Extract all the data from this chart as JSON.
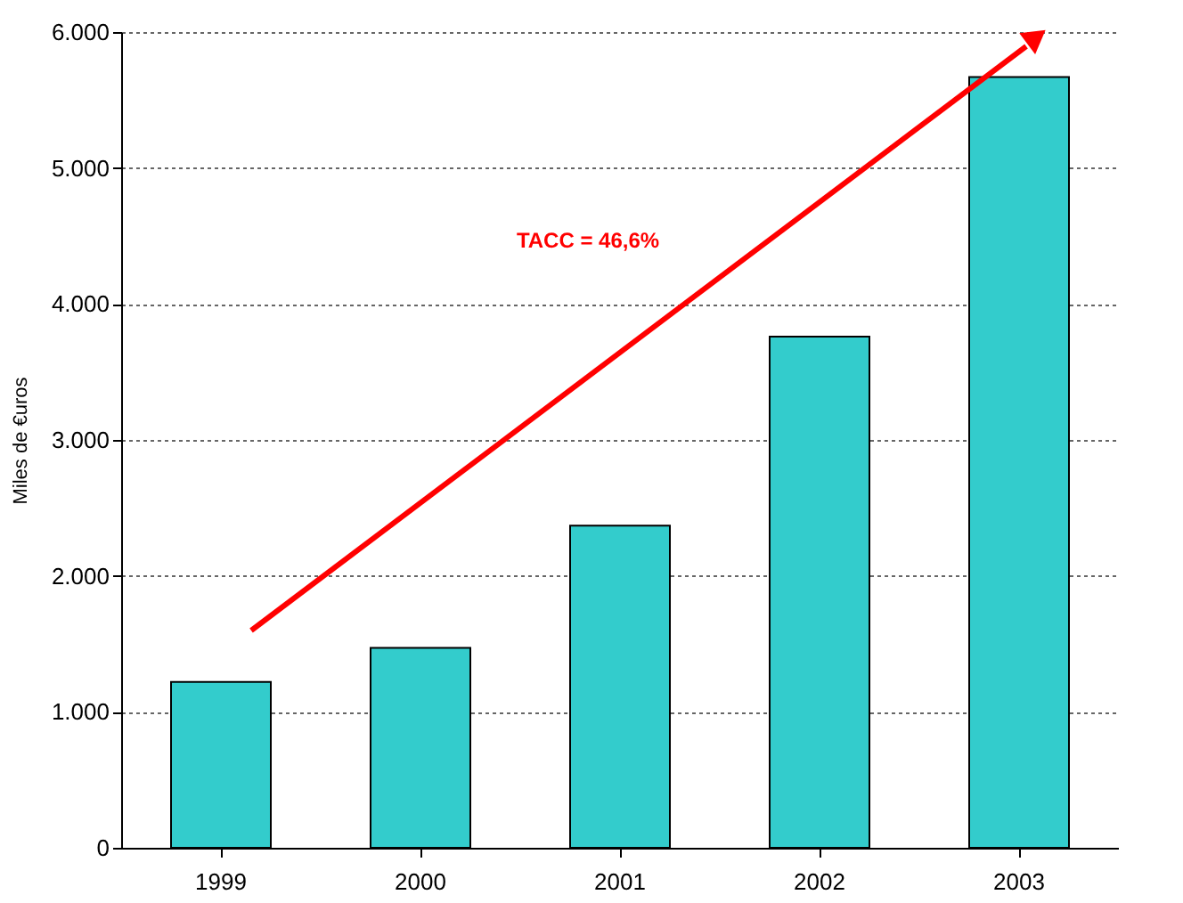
{
  "chart_data": {
    "type": "bar",
    "ylabel": "Miles de €uros",
    "categories": [
      "1999",
      "2000",
      "2001",
      "2002",
      "2003"
    ],
    "values": [
      1220,
      1470,
      2370,
      3760,
      5670
    ],
    "color": "#33cccc",
    "ylim": [
      0,
      6000
    ],
    "yticks": [
      {
        "value": 0,
        "label": "0"
      },
      {
        "value": 1000,
        "label": "1.000"
      },
      {
        "value": 2000,
        "label": "2.000"
      },
      {
        "value": 3000,
        "label": "3.000"
      },
      {
        "value": 4000,
        "label": "4.000"
      },
      {
        "value": 5000,
        "label": "5.000"
      },
      {
        "value": 6000,
        "label": "6.000"
      }
    ],
    "grid": "y",
    "annotations": [
      "TACC = 46,6%"
    ]
  }
}
